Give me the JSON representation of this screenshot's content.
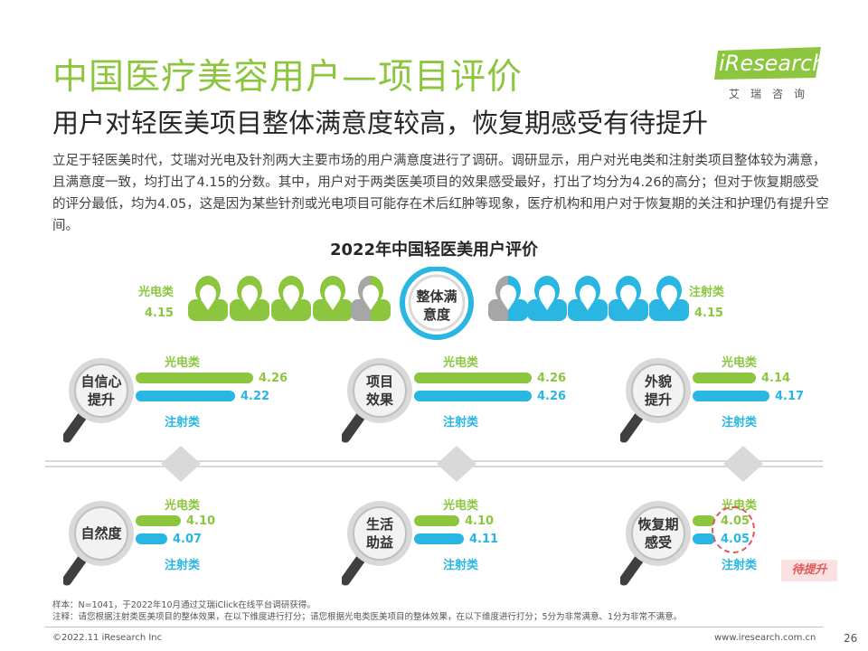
{
  "header": {
    "title": "中国医疗美容用户—项目评价",
    "subtitle": "用户对轻医美项目整体满意度较高，恢复期感受有待提升",
    "logo": "iResearch",
    "logo_cn": "艾瑞咨询"
  },
  "intro": "立足于轻医美时代，艾瑞对光电及针剂两大主要市场的用户满意度进行了调研。调研显示，用户对光电类和注射类项目整体较为满意，且满意度一致，均打出了4.15的分数。其中，用户对于两类医美项目的效果感受最好，打出了均分为4.26的高分；但对于恢复期感受的评分最低，均为4.05，这是因为某些针剂或光电项目可能存在术后红肿等现象，医疗机构和用户对于恢复期的关注和护理仍有提升空间。",
  "chart_data": {
    "type": "bar",
    "title": "2022年中国轻医美用户评价",
    "overall": {
      "label_line1": "整体满",
      "label_line2": "意度",
      "left_name": "光电类",
      "left_value": "4.15",
      "right_name": "注射类",
      "right_value": "4.15"
    },
    "series_names": [
      "光电类",
      "注射类"
    ],
    "items": [
      {
        "line1": "自信心",
        "line2": "提升",
        "guangdian": 4.26,
        "zhushe": 4.22,
        "g_label": "4.26",
        "z_label": "4.22"
      },
      {
        "line1": "项目",
        "line2": "效果",
        "guangdian": 4.26,
        "zhushe": 4.26,
        "g_label": "4.26",
        "z_label": "4.26"
      },
      {
        "line1": "外貌",
        "line2": "提升",
        "guangdian": 4.14,
        "zhushe": 4.17,
        "g_label": "4.14",
        "z_label": "4.17"
      },
      {
        "line1": "自然度",
        "line2": "",
        "guangdian": 4.1,
        "zhushe": 4.07,
        "g_label": "4.10",
        "z_label": "4.07"
      },
      {
        "line1": "生活",
        "line2": "助益",
        "guangdian": 4.1,
        "zhushe": 4.11,
        "g_label": "4.10",
        "z_label": "4.11"
      },
      {
        "line1": "恢复期",
        "line2": "感受",
        "guangdian": 4.05,
        "zhushe": 4.05,
        "g_label": "4.05",
        "z_label": "4.05"
      }
    ],
    "highlight_tag": "待提升",
    "colors": {
      "guangdian": "#8cc63f",
      "zhushe": "#29b6e3",
      "gray": "#a6a6a6"
    }
  },
  "notes": {
    "sample": "样本：N=1041，于2022年10月通过艾瑞iClick在线平台调研获得。",
    "remark": "注释：请您根据注射类医美项目的整体效果，在以下维度进行打分；请您根据光电类医美项目的整体效果，在以下维度进行打分；5分为非常满意、1分为非常不满意。"
  },
  "footer": {
    "copyright": "©2022.11 iResearch Inc",
    "site": "www.iresearch.com.cn",
    "page": "26"
  }
}
